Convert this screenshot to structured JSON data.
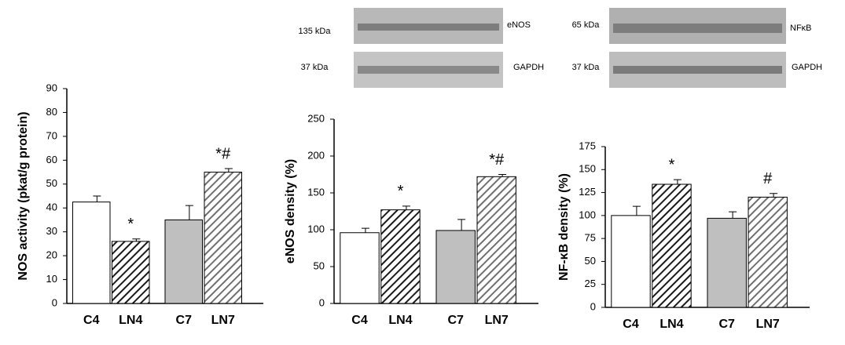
{
  "blots": [
    {
      "bands": [
        {
          "kda": "135 kDa",
          "name": "eNOS"
        },
        {
          "kda": "37 kDa",
          "name": "GAPDH"
        }
      ]
    },
    {
      "bands": [
        {
          "kda": "65 kDa",
          "name": "NFκB"
        },
        {
          "kda": "37 kDa",
          "name": "GAPDH"
        }
      ]
    }
  ],
  "chart_data": [
    {
      "type": "bar",
      "y_label": "NOS activity (pkat/g protein)",
      "categories": [
        "C4",
        "LN4",
        "C7",
        "LN7"
      ],
      "values": [
        42.5,
        26,
        35,
        55
      ],
      "errors": [
        2.5,
        1,
        6,
        1.5
      ],
      "annotations": [
        null,
        "*",
        null,
        "*#"
      ],
      "colors": [
        "#ffffff",
        "#1a1a1a",
        "#bfbfbf",
        "#707070"
      ],
      "hatch": [
        false,
        true,
        false,
        true
      ],
      "ylim": [
        0,
        90
      ],
      "yticks": [
        0,
        10,
        20,
        30,
        40,
        50,
        60,
        70,
        80,
        90
      ]
    },
    {
      "type": "bar",
      "y_label": "eNOS density (%)",
      "categories": [
        "C4",
        "LN4",
        "C7",
        "LN7"
      ],
      "values": [
        96,
        127,
        99,
        172
      ],
      "errors": [
        6,
        5,
        15,
        3
      ],
      "annotations": [
        null,
        "*",
        null,
        "*#"
      ],
      "colors": [
        "#ffffff",
        "#1a1a1a",
        "#bfbfbf",
        "#707070"
      ],
      "hatch": [
        false,
        true,
        false,
        true
      ],
      "ylim": [
        0,
        250
      ],
      "yticks": [
        0,
        50,
        100,
        150,
        200,
        250
      ]
    },
    {
      "type": "bar",
      "y_label": "NF-κB density (%)",
      "categories": [
        "C4",
        "LN4",
        "C7",
        "LN7"
      ],
      "values": [
        100,
        134,
        97,
        120
      ],
      "errors": [
        10,
        5,
        7,
        4
      ],
      "annotations": [
        null,
        "*",
        null,
        "#"
      ],
      "colors": [
        "#ffffff",
        "#1a1a1a",
        "#bfbfbf",
        "#707070"
      ],
      "hatch": [
        false,
        true,
        false,
        true
      ],
      "ylim": [
        0,
        175
      ],
      "yticks": [
        0,
        25,
        50,
        75,
        100,
        125,
        150,
        175
      ]
    }
  ]
}
